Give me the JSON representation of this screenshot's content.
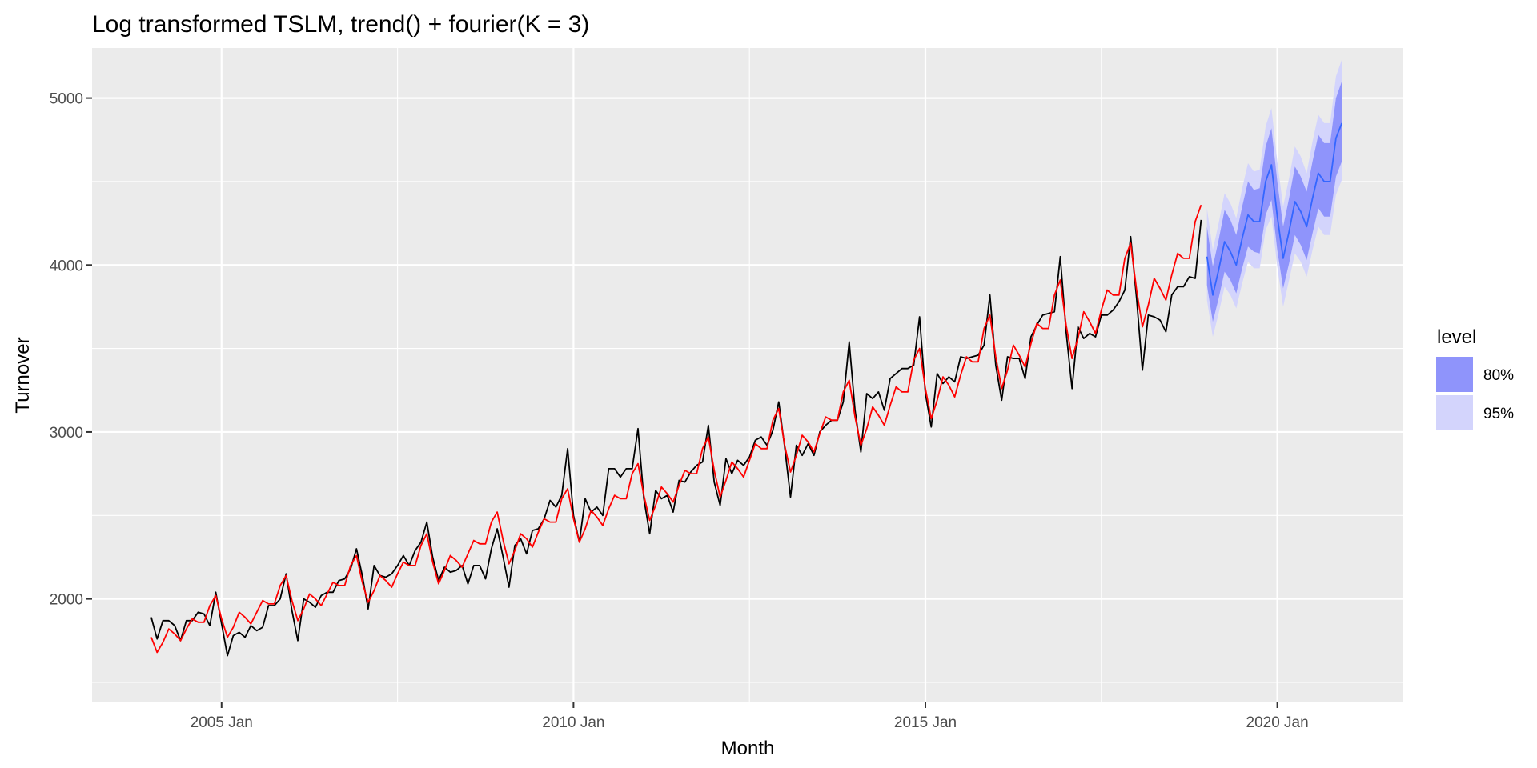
{
  "chart_data": {
    "type": "line",
    "title": "Log transformed TSLM, trend() + fourier(K = 3)",
    "xlabel": "Month",
    "ylabel": "Turnover",
    "x_ticks": [
      {
        "value": 2005.0,
        "label": "2005 Jan"
      },
      {
        "value": 2010.0,
        "label": "2010 Jan"
      },
      {
        "value": 2015.0,
        "label": "2015 Jan"
      },
      {
        "value": 2020.0,
        "label": "2020 Jan"
      }
    ],
    "y_ticks": [
      {
        "value": 2000,
        "label": "2000"
      },
      {
        "value": 3000,
        "label": "3000"
      },
      {
        "value": 4000,
        "label": "4000"
      },
      {
        "value": 5000,
        "label": "5000"
      }
    ],
    "xlim": [
      2003.16,
      2021.79
    ],
    "ylim": [
      1380,
      5300
    ],
    "grid": true,
    "legend": {
      "title": "level",
      "position": "right",
      "items": [
        {
          "label": "80%",
          "color": "#8f94fb"
        },
        {
          "label": "95%",
          "color": "#d3d4fc"
        }
      ]
    },
    "series": [
      {
        "role": "observed",
        "color": "#000000",
        "start": 2004.0,
        "step": 0.0833333,
        "values": [
          1890,
          1760,
          1870,
          1870,
          1840,
          1750,
          1870,
          1870,
          1920,
          1910,
          1840,
          2040,
          1850,
          1660,
          1780,
          1800,
          1770,
          1840,
          1810,
          1830,
          1960,
          1960,
          2000,
          2150,
          1930,
          1750,
          2000,
          1980,
          1950,
          2020,
          2040,
          2040,
          2110,
          2120,
          2180,
          2300,
          2140,
          1940,
          2200,
          2140,
          2130,
          2150,
          2200,
          2260,
          2200,
          2290,
          2340,
          2460,
          2250,
          2110,
          2190,
          2160,
          2170,
          2200,
          2090,
          2200,
          2200,
          2120,
          2300,
          2420,
          2250,
          2070,
          2320,
          2360,
          2270,
          2410,
          2420,
          2480,
          2590,
          2550,
          2620,
          2900,
          2500,
          2340,
          2600,
          2520,
          2550,
          2500,
          2780,
          2780,
          2730,
          2780,
          2780,
          3020,
          2600,
          2390,
          2650,
          2600,
          2620,
          2520,
          2710,
          2700,
          2760,
          2800,
          2820,
          3040,
          2700,
          2560,
          2840,
          2750,
          2830,
          2800,
          2850,
          2950,
          2970,
          2920,
          3010,
          3180,
          2910,
          2610,
          2920,
          2860,
          2930,
          2860,
          3000,
          3040,
          3070,
          3070,
          3180,
          3540,
          3130,
          2880,
          3230,
          3200,
          3240,
          3130,
          3320,
          3350,
          3380,
          3380,
          3400,
          3690,
          3230,
          3030,
          3350,
          3290,
          3330,
          3300,
          3450,
          3440,
          3450,
          3460,
          3520,
          3820,
          3400,
          3190,
          3450,
          3440,
          3440,
          3320,
          3570,
          3640,
          3700,
          3710,
          3720,
          4050,
          3600,
          3260,
          3630,
          3560,
          3590,
          3570,
          3700,
          3700,
          3730,
          3780,
          3850,
          4170,
          3800,
          3370,
          3700,
          3690,
          3670,
          3600,
          3820,
          3870,
          3870,
          3930,
          3920,
          4270
        ]
      },
      {
        "role": "fitted",
        "color": "#ff0000",
        "start": 2004.0,
        "step": 0.0833333,
        "values": [
          1770,
          1680,
          1740,
          1820,
          1790,
          1750,
          1820,
          1880,
          1860,
          1860,
          1960,
          2020,
          1880,
          1770,
          1830,
          1920,
          1890,
          1850,
          1920,
          1990,
          1970,
          1970,
          2080,
          2140,
          1990,
          1870,
          1940,
          2030,
          2000,
          1960,
          2030,
          2100,
          2080,
          2080,
          2200,
          2260,
          2100,
          1980,
          2050,
          2140,
          2110,
          2070,
          2150,
          2220,
          2200,
          2200,
          2320,
          2390,
          2220,
          2090,
          2170,
          2260,
          2230,
          2190,
          2270,
          2350,
          2330,
          2330,
          2460,
          2520,
          2350,
          2210,
          2290,
          2390,
          2360,
          2310,
          2400,
          2480,
          2460,
          2460,
          2600,
          2660,
          2480,
          2340,
          2420,
          2530,
          2490,
          2440,
          2540,
          2620,
          2600,
          2600,
          2750,
          2810,
          2620,
          2470,
          2560,
          2670,
          2630,
          2580,
          2680,
          2770,
          2750,
          2750,
          2900,
          2970,
          2770,
          2610,
          2710,
          2820,
          2780,
          2730,
          2830,
          2930,
          2900,
          2900,
          3070,
          3140,
          2920,
          2760,
          2860,
          2980,
          2940,
          2880,
          2990,
          3090,
          3070,
          3070,
          3240,
          3310,
          3090,
          2920,
          3020,
          3150,
          3100,
          3040,
          3160,
          3270,
          3240,
          3240,
          3430,
          3500,
          3260,
          3080,
          3190,
          3330,
          3280,
          3210,
          3340,
          3450,
          3420,
          3420,
          3620,
          3700,
          3450,
          3260,
          3370,
          3520,
          3460,
          3390,
          3530,
          3650,
          3620,
          3620,
          3820,
          3910,
          3640,
          3440,
          3560,
          3720,
          3660,
          3590,
          3730,
          3850,
          3820,
          3820,
          4040,
          4130,
          3850,
          3630,
          3760,
          3920,
          3860,
          3790,
          3940,
          4070,
          4040,
          4040,
          4260,
          4360
        ]
      },
      {
        "role": "forecast",
        "color": "#3366ff",
        "start": 2019.0,
        "step": 0.0833333,
        "values": [
          4050,
          3820,
          3970,
          4140,
          4080,
          4000,
          4160,
          4300,
          4260,
          4260,
          4500,
          4600,
          4290,
          4040,
          4200,
          4380,
          4320,
          4230,
          4400,
          4550,
          4500,
          4500,
          4760,
          4850
        ],
        "pi80_lower": [
          3880,
          3660,
          3800,
          3960,
          3910,
          3830,
          3980,
          4110,
          4080,
          4070,
          4300,
          4390,
          4090,
          3860,
          4010,
          4180,
          4120,
          4030,
          4190,
          4340,
          4290,
          4290,
          4530,
          4620
        ],
        "pi80_upper": [
          4230,
          3990,
          4150,
          4330,
          4270,
          4180,
          4350,
          4500,
          4450,
          4460,
          4710,
          4820,
          4500,
          4230,
          4400,
          4590,
          4530,
          4440,
          4620,
          4780,
          4730,
          4730,
          5000,
          5100
        ],
        "pi95_lower": [
          3790,
          3570,
          3710,
          3870,
          3820,
          3740,
          3890,
          4020,
          3980,
          3980,
          4210,
          4290,
          3990,
          3750,
          3910,
          4070,
          4020,
          3930,
          4090,
          4230,
          4180,
          4180,
          4420,
          4510
        ],
        "pi95_upper": [
          4340,
          4090,
          4250,
          4430,
          4370,
          4280,
          4460,
          4610,
          4560,
          4570,
          4830,
          4940,
          4620,
          4350,
          4520,
          4710,
          4650,
          4550,
          4740,
          4900,
          4850,
          4850,
          5130,
          5230
        ]
      }
    ]
  }
}
